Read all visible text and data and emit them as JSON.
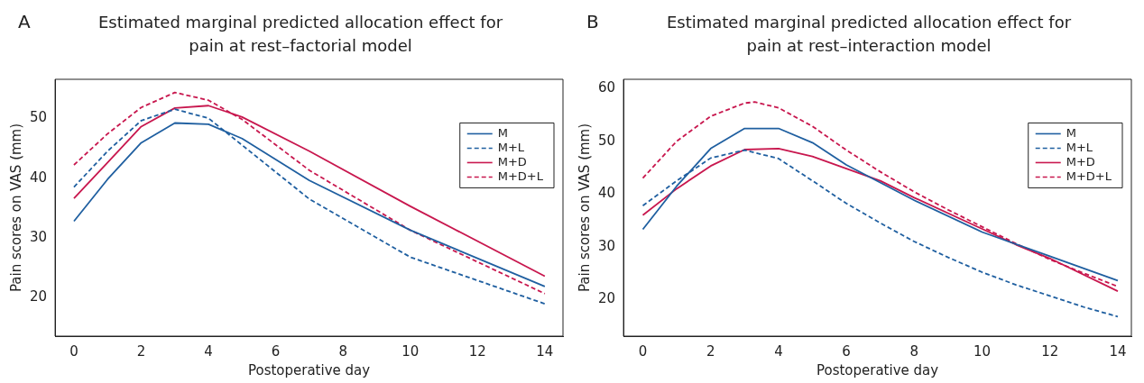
{
  "chart_data": [
    {
      "type": "line",
      "title": "Estimated marginal predicted allocation effect for pain at rest–factorial model",
      "annotations": [
        "A"
      ],
      "xlabel": "Postoperative day",
      "ylabel": "Pain scores on VAS (mm)",
      "xlim": [
        -0.56,
        14.54
      ],
      "xticks": [
        0,
        2,
        4,
        6,
        8,
        10,
        12,
        14
      ],
      "ylim": [
        13.6,
        56.5
      ],
      "yticks": [
        20,
        30,
        40,
        50
      ],
      "grid": false,
      "legend": "right",
      "marker": "none",
      "series": [
        {
          "name": "M",
          "color": "#1f5fa0",
          "line_style": "solid",
          "x": [
            0,
            1,
            2,
            3,
            4,
            5,
            7,
            10,
            14
          ],
          "values": [
            32.8,
            39.8,
            45.9,
            49.2,
            49.0,
            46.6,
            39.6,
            31.3,
            21.9
          ]
        },
        {
          "name": "M+L",
          "color": "#1f5fa0",
          "line_style": "dashed",
          "x": [
            0,
            1,
            2,
            3,
            4,
            5,
            7,
            10,
            14
          ],
          "values": [
            38.5,
            44.5,
            49.6,
            51.5,
            50.0,
            45.5,
            36.5,
            26.8,
            19.0
          ]
        },
        {
          "name": "M+D",
          "color": "#c8174e",
          "line_style": "solid",
          "x": [
            0,
            1,
            2,
            3,
            4,
            5,
            7,
            10,
            14
          ],
          "values": [
            36.6,
            42.6,
            48.6,
            51.7,
            52.1,
            50.2,
            44.5,
            35.3,
            23.6
          ]
        },
        {
          "name": "M+D+L",
          "color": "#c8174e",
          "line_style": "dashed",
          "x": [
            0,
            1,
            2,
            3,
            4,
            5,
            7,
            10,
            14
          ],
          "values": [
            42.2,
            47.4,
            51.8,
            54.3,
            53.0,
            49.8,
            41.3,
            31.3,
            20.7
          ]
        }
      ]
    },
    {
      "type": "line",
      "title": "Estimated marginal predicted allocation effect for pain at rest–interaction model",
      "annotations": [
        "B"
      ],
      "xlabel": "Postoperative day",
      "ylabel": "Pain scores on VAS (mm)",
      "xlim": [
        -0.57,
        14.4
      ],
      "xticks": [
        0,
        2,
        4,
        6,
        8,
        10,
        12,
        14
      ],
      "ylim": [
        13.1,
        61.7
      ],
      "yticks": [
        20,
        30,
        40,
        50,
        60
      ],
      "grid": false,
      "legend": "right",
      "marker": "none",
      "series": [
        {
          "name": "M",
          "color": "#1f5fa0",
          "line_style": "solid",
          "x": [
            0,
            1,
            2,
            3,
            4,
            5,
            6,
            8,
            10,
            12,
            14
          ],
          "values": [
            33.3,
            41.5,
            48.6,
            52.4,
            52.4,
            49.7,
            45.5,
            38.8,
            32.8,
            28.2,
            23.6
          ]
        },
        {
          "name": "M+L",
          "color": "#1f5fa0",
          "line_style": "dashed",
          "x": [
            0,
            1,
            2,
            3,
            4,
            5,
            6,
            7,
            8,
            9,
            10,
            11,
            12,
            13,
            14
          ],
          "values": [
            37.8,
            42.5,
            46.8,
            48.3,
            46.7,
            42.5,
            38.2,
            34.5,
            31.0,
            28.0,
            25.2,
            22.8,
            20.7,
            18.6,
            16.8
          ]
        },
        {
          "name": "M+D",
          "color": "#c8174e",
          "line_style": "solid",
          "x": [
            0,
            1,
            2,
            3,
            4,
            5,
            6,
            7,
            8,
            10,
            11,
            12,
            14
          ],
          "values": [
            36.0,
            41.0,
            45.3,
            48.4,
            48.6,
            47.1,
            44.8,
            42.5,
            39.3,
            33.4,
            30.4,
            27.8,
            21.6
          ]
        },
        {
          "name": "M+D+L",
          "color": "#c8174e",
          "line_style": "dashed",
          "x": [
            0,
            1,
            2,
            3,
            3.3,
            4,
            5,
            6,
            7,
            8,
            9,
            10,
            11,
            12,
            13,
            14
          ],
          "values": [
            43.0,
            50.0,
            54.7,
            57.2,
            57.4,
            56.3,
            52.8,
            48.3,
            44.2,
            40.4,
            37.0,
            33.8,
            30.6,
            27.6,
            25.0,
            22.5
          ]
        }
      ]
    }
  ]
}
